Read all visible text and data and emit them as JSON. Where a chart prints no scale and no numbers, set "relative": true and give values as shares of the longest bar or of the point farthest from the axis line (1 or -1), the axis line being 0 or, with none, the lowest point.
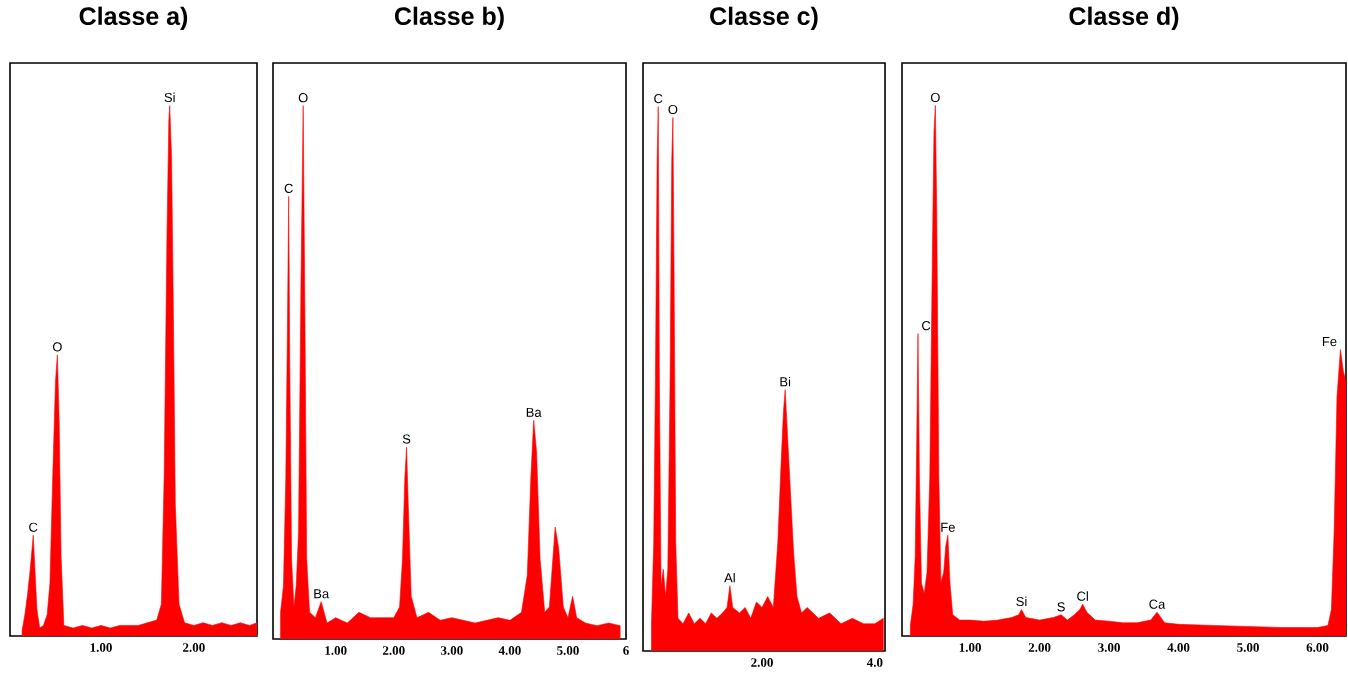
{
  "chart_data": [
    {
      "type": "area",
      "title": "Classe a)",
      "relative": true,
      "tick_labels": "x",
      "color": "#ff0000",
      "xlim": [
        0.02,
        2.68
      ],
      "xticks": [
        {
          "value": 1,
          "label": "1.00"
        },
        {
          "value": 2,
          "label": "2.00"
        }
      ],
      "x": [
        0.15,
        0.18,
        0.21,
        0.24,
        0.27,
        0.29,
        0.31,
        0.34,
        0.38,
        0.42,
        0.45,
        0.48,
        0.51,
        0.53,
        0.55,
        0.57,
        0.6,
        0.7,
        0.8,
        0.9,
        1.0,
        1.1,
        1.2,
        1.3,
        1.4,
        1.5,
        1.6,
        1.65,
        1.68,
        1.71,
        1.73,
        1.74,
        1.76,
        1.78,
        1.8,
        1.84,
        1.9,
        2.0,
        2.1,
        2.2,
        2.3,
        2.4,
        2.5,
        2.6,
        2.68
      ],
      "values": [
        0.01,
        0.04,
        0.08,
        0.13,
        0.19,
        0.12,
        0.05,
        0.015,
        0.02,
        0.04,
        0.1,
        0.3,
        0.48,
        0.53,
        0.4,
        0.15,
        0.02,
        0.015,
        0.02,
        0.015,
        0.02,
        0.015,
        0.02,
        0.02,
        0.02,
        0.025,
        0.03,
        0.06,
        0.3,
        0.75,
        0.97,
        1.0,
        0.9,
        0.6,
        0.25,
        0.06,
        0.025,
        0.02,
        0.025,
        0.02,
        0.025,
        0.02,
        0.025,
        0.02,
        0.025
      ],
      "annotations": [
        {
          "text": "C",
          "x": 0.27,
          "y": 0.19
        },
        {
          "text": "O",
          "x": 0.53,
          "y": 0.53
        },
        {
          "text": "Si",
          "x": 1.74,
          "y": 1.0
        }
      ]
    },
    {
      "type": "area",
      "title": "Classe b)",
      "relative": true,
      "tick_labels": "x",
      "color": "#ff0000",
      "xlim": [
        -0.08,
        6.0
      ],
      "xticks": [
        {
          "value": 1,
          "label": "1.00"
        },
        {
          "value": 2,
          "label": "2.00"
        },
        {
          "value": 3,
          "label": "3.00"
        },
        {
          "value": 4,
          "label": "4.00"
        },
        {
          "value": 5,
          "label": "5.00"
        },
        {
          "value": 6,
          "label": "6"
        }
      ],
      "x": [
        0.05,
        0.1,
        0.14,
        0.17,
        0.19,
        0.21,
        0.24,
        0.28,
        0.32,
        0.36,
        0.4,
        0.44,
        0.47,
        0.5,
        0.55,
        0.65,
        0.75,
        0.85,
        1.0,
        1.2,
        1.4,
        1.6,
        1.8,
        2.0,
        2.1,
        2.15,
        2.19,
        2.22,
        2.25,
        2.3,
        2.4,
        2.6,
        2.8,
        3.0,
        3.2,
        3.4,
        3.6,
        3.8,
        4.0,
        4.2,
        4.3,
        4.36,
        4.41,
        4.46,
        4.52,
        4.6,
        4.68,
        4.74,
        4.78,
        4.84,
        4.92,
        5.0,
        5.08,
        5.15,
        5.3,
        5.5,
        5.7,
        5.9
      ],
      "values": [
        0.05,
        0.1,
        0.3,
        0.6,
        0.83,
        0.5,
        0.15,
        0.06,
        0.1,
        0.2,
        0.65,
        1.0,
        0.6,
        0.15,
        0.05,
        0.04,
        0.07,
        0.03,
        0.04,
        0.03,
        0.05,
        0.04,
        0.04,
        0.04,
        0.06,
        0.15,
        0.3,
        0.36,
        0.25,
        0.08,
        0.04,
        0.05,
        0.035,
        0.04,
        0.035,
        0.03,
        0.035,
        0.04,
        0.035,
        0.05,
        0.12,
        0.3,
        0.41,
        0.35,
        0.15,
        0.05,
        0.06,
        0.15,
        0.21,
        0.17,
        0.06,
        0.04,
        0.08,
        0.04,
        0.03,
        0.025,
        0.03,
        0.025
      ],
      "annotations": [
        {
          "text": "C",
          "x": 0.19,
          "y": 0.83
        },
        {
          "text": "O",
          "x": 0.44,
          "y": 1.0
        },
        {
          "text": "Ba",
          "x": 0.75,
          "y": 0.07
        },
        {
          "text": "S",
          "x": 2.22,
          "y": 0.36
        },
        {
          "text": "Ba",
          "x": 4.41,
          "y": 0.41
        }
      ]
    },
    {
      "type": "area",
      "title": "Classe c)",
      "relative": true,
      "tick_labels": "x",
      "color": "#ff0000",
      "xlim": [
        -0.11,
        4.18
      ],
      "xticks": [
        {
          "value": 2,
          "label": "2.00"
        },
        {
          "value": 4,
          "label": "4.0"
        }
      ],
      "x": [
        0.04,
        0.08,
        0.11,
        0.14,
        0.16,
        0.18,
        0.21,
        0.25,
        0.29,
        0.33,
        0.37,
        0.4,
        0.42,
        0.44,
        0.47,
        0.51,
        0.6,
        0.7,
        0.8,
        0.9,
        1.0,
        1.1,
        1.2,
        1.3,
        1.38,
        1.43,
        1.48,
        1.6,
        1.7,
        1.8,
        1.9,
        2.0,
        2.1,
        2.2,
        2.28,
        2.34,
        2.38,
        2.41,
        2.45,
        2.5,
        2.56,
        2.62,
        2.7,
        2.8,
        3.0,
        3.2,
        3.4,
        3.6,
        3.8,
        4.0,
        4.15
      ],
      "values": [
        0.05,
        0.2,
        0.5,
        0.9,
        1.0,
        0.5,
        0.12,
        0.15,
        0.1,
        0.15,
        0.5,
        0.9,
        0.98,
        0.7,
        0.2,
        0.06,
        0.05,
        0.07,
        0.05,
        0.06,
        0.05,
        0.07,
        0.06,
        0.07,
        0.08,
        0.12,
        0.08,
        0.07,
        0.08,
        0.06,
        0.09,
        0.08,
        0.1,
        0.08,
        0.2,
        0.35,
        0.44,
        0.48,
        0.4,
        0.3,
        0.18,
        0.1,
        0.07,
        0.08,
        0.06,
        0.07,
        0.05,
        0.06,
        0.05,
        0.05,
        0.06
      ],
      "annotations": [
        {
          "text": "C",
          "x": 0.16,
          "y": 1.0
        },
        {
          "text": "O",
          "x": 0.42,
          "y": 0.98
        },
        {
          "text": "Al",
          "x": 1.43,
          "y": 0.12
        },
        {
          "text": "Bi",
          "x": 2.41,
          "y": 0.48
        }
      ]
    },
    {
      "type": "area",
      "title": "Classe d)",
      "relative": true,
      "tick_labels": "x",
      "color": "#ff0000",
      "xlim": [
        0.02,
        6.41
      ],
      "xticks": [
        {
          "value": 1,
          "label": "1.00"
        },
        {
          "value": 2,
          "label": "2.00"
        },
        {
          "value": 3,
          "label": "3.00"
        },
        {
          "value": 4,
          "label": "4.00"
        },
        {
          "value": 5,
          "label": "5.00"
        },
        {
          "value": 6,
          "label": "6.00"
        }
      ],
      "x": [
        0.14,
        0.18,
        0.21,
        0.23,
        0.25,
        0.27,
        0.3,
        0.34,
        0.38,
        0.42,
        0.46,
        0.48,
        0.5,
        0.52,
        0.55,
        0.58,
        0.62,
        0.65,
        0.68,
        0.71,
        0.75,
        0.85,
        1.0,
        1.2,
        1.4,
        1.6,
        1.7,
        1.74,
        1.8,
        2.0,
        2.2,
        2.31,
        2.4,
        2.5,
        2.58,
        2.62,
        2.68,
        2.8,
        3.0,
        3.2,
        3.4,
        3.6,
        3.69,
        3.8,
        4.0,
        4.5,
        5.0,
        5.5,
        6.0,
        6.15,
        6.2,
        6.24,
        6.28,
        6.33,
        6.37,
        6.41
      ],
      "values": [
        0.02,
        0.06,
        0.15,
        0.35,
        0.57,
        0.3,
        0.1,
        0.08,
        0.12,
        0.3,
        0.75,
        0.95,
        1.0,
        0.8,
        0.3,
        0.1,
        0.12,
        0.17,
        0.19,
        0.1,
        0.04,
        0.03,
        0.03,
        0.028,
        0.03,
        0.035,
        0.04,
        0.05,
        0.035,
        0.03,
        0.035,
        0.04,
        0.03,
        0.04,
        0.05,
        0.06,
        0.045,
        0.03,
        0.028,
        0.025,
        0.025,
        0.03,
        0.045,
        0.025,
        0.022,
        0.02,
        0.018,
        0.016,
        0.016,
        0.02,
        0.05,
        0.2,
        0.45,
        0.54,
        0.5,
        0.48
      ],
      "annotations": [
        {
          "text": "C",
          "x": 0.25,
          "y": 0.57
        },
        {
          "text": "O",
          "x": 0.5,
          "y": 1.0
        },
        {
          "text": "Fe",
          "x": 0.68,
          "y": 0.19
        },
        {
          "text": "Si",
          "x": 1.74,
          "y": 0.05
        },
        {
          "text": "S",
          "x": 2.31,
          "y": 0.04
        },
        {
          "text": "Cl",
          "x": 2.62,
          "y": 0.06
        },
        {
          "text": "Ca",
          "x": 3.69,
          "y": 0.045
        },
        {
          "text": "Fe",
          "x": 6.33,
          "y": 0.54
        }
      ]
    }
  ]
}
